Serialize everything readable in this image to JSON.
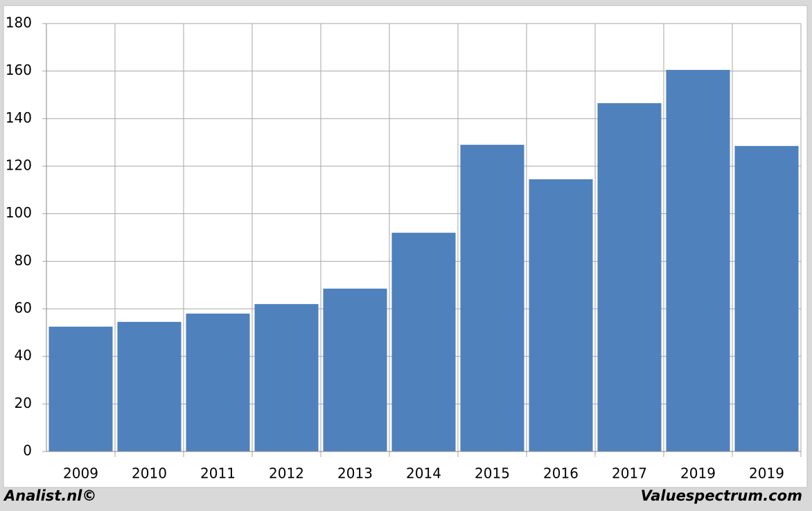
{
  "chart_data": {
    "type": "bar",
    "categories": [
      "2009",
      "2010",
      "2011",
      "2012",
      "2013",
      "2014",
      "2015",
      "2016",
      "2017",
      "2019",
      "2019"
    ],
    "values": [
      52.5,
      54.5,
      58,
      62,
      68.5,
      92,
      129,
      114.5,
      146.5,
      160.5,
      128.5
    ],
    "color": "#4f81bd",
    "ylim": [
      0,
      180
    ],
    "yticks": [
      0,
      20,
      40,
      60,
      80,
      100,
      120,
      140,
      160,
      180
    ],
    "grid": true,
    "footer_left": "Analist.nl©",
    "footer_right": "Valuespectrum.com"
  }
}
